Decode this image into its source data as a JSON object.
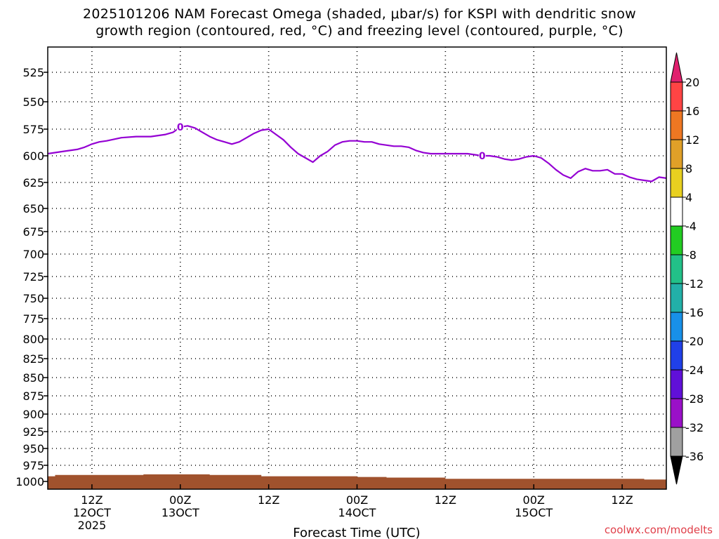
{
  "chart_data": {
    "type": "time-height",
    "title_line1": "2025101206 NAM Forecast Omega (shaded, μbar/s) for KSPI with dendritic snow",
    "title_line2": "growth region (contoured, red, °C) and freezing level (contoured, purple, °C)",
    "xlabel": "Forecast Time (UTC)",
    "credit": "coolwx.com/modelts",
    "x_range_hours": [
      0,
      84
    ],
    "y_range_hPa": [
      505,
      1010
    ],
    "y_ticks": [
      525,
      550,
      575,
      600,
      625,
      650,
      675,
      700,
      725,
      750,
      775,
      800,
      825,
      850,
      875,
      900,
      925,
      950,
      975,
      1000
    ],
    "x_ticks": [
      {
        "hour": 6,
        "lines": [
          "12Z",
          "12OCT",
          "2025"
        ]
      },
      {
        "hour": 18,
        "lines": [
          "00Z",
          "13OCT"
        ]
      },
      {
        "hour": 30,
        "lines": [
          "12Z"
        ]
      },
      {
        "hour": 42,
        "lines": [
          "00Z",
          "14OCT"
        ]
      },
      {
        "hour": 54,
        "lines": [
          "12Z"
        ]
      },
      {
        "hour": 66,
        "lines": [
          "00Z",
          "15OCT"
        ]
      },
      {
        "hour": 78,
        "lines": [
          "12Z"
        ]
      }
    ],
    "freezing_level": {
      "name": "Freezing level (0 °C)",
      "color": "#9400d3",
      "contour_label": "0",
      "label_hours": [
        18,
        59
      ],
      "hours": [
        0,
        2,
        4,
        5,
        6,
        7,
        8,
        10,
        12,
        13,
        14,
        16,
        17,
        18,
        19,
        20,
        21,
        22,
        23,
        24,
        25,
        26,
        27,
        28,
        29,
        30,
        31,
        32,
        33,
        34,
        35,
        36,
        37,
        38,
        39,
        40,
        41,
        42,
        43,
        44,
        45,
        46,
        47,
        48,
        49,
        50,
        51,
        52,
        53,
        54,
        55,
        56,
        57,
        58,
        59,
        60,
        61,
        62,
        63,
        64,
        65,
        66,
        67,
        68,
        69,
        70,
        71,
        72,
        73,
        74,
        75,
        76,
        77,
        78,
        79,
        80,
        81,
        82,
        83,
        84
      ],
      "values": [
        598,
        596,
        594,
        592,
        589,
        587,
        586,
        583,
        582,
        582,
        582,
        580,
        578,
        573,
        572,
        574,
        578,
        582,
        585,
        587,
        589,
        587,
        583,
        579,
        576,
        575,
        580,
        585,
        592,
        598,
        602,
        606,
        600,
        596,
        590,
        587,
        586,
        586,
        587,
        587,
        589,
        590,
        591,
        591,
        592,
        595,
        597,
        598,
        598,
        598,
        598,
        598,
        598,
        599,
        600,
        600,
        601,
        603,
        604,
        603,
        601,
        600,
        602,
        607,
        613,
        618,
        621,
        615,
        612,
        614,
        614,
        613,
        617,
        617,
        620,
        622,
        623,
        624,
        620,
        621
      ],
      "estimated": true
    },
    "surface_terrain": {
      "name": "Below-ground (surface pressure)",
      "color": "#a0522d",
      "hours": [
        0,
        1,
        3,
        6,
        9,
        12,
        13,
        16,
        18,
        22,
        23,
        28,
        29,
        31,
        36,
        41,
        42,
        45,
        46,
        53,
        54,
        56,
        60,
        66,
        72,
        78,
        80,
        81,
        82,
        84
      ],
      "surface_hPa": [
        992,
        990,
        990,
        990,
        990,
        990,
        989,
        989,
        989,
        990,
        990,
        990,
        992,
        992,
        992,
        992,
        993,
        993,
        994,
        994,
        996,
        996,
        996,
        996,
        996,
        996,
        996,
        997,
        997,
        996
      ],
      "estimated": true
    },
    "omega_colorbar": {
      "units": "μbar/s",
      "labels": [
        20,
        16,
        12,
        8,
        4,
        -4,
        -8,
        -12,
        -16,
        -20,
        -24,
        -28,
        -32,
        -36
      ],
      "colors": [
        "#ff4444",
        "#ee7722",
        "#e0a028",
        "#e8d020",
        "#ffffff",
        "#22cc22",
        "#22c088",
        "#22b0a8",
        "#1890e8",
        "#2040e8",
        "#6010d8",
        "#9a10c8",
        "#a0a0a0"
      ],
      "top_arrow_color": "#e0206e",
      "bottom_arrow_color": "#000000"
    },
    "omega_shading": "none visible",
    "dendritic_growth_region": "none visible"
  }
}
